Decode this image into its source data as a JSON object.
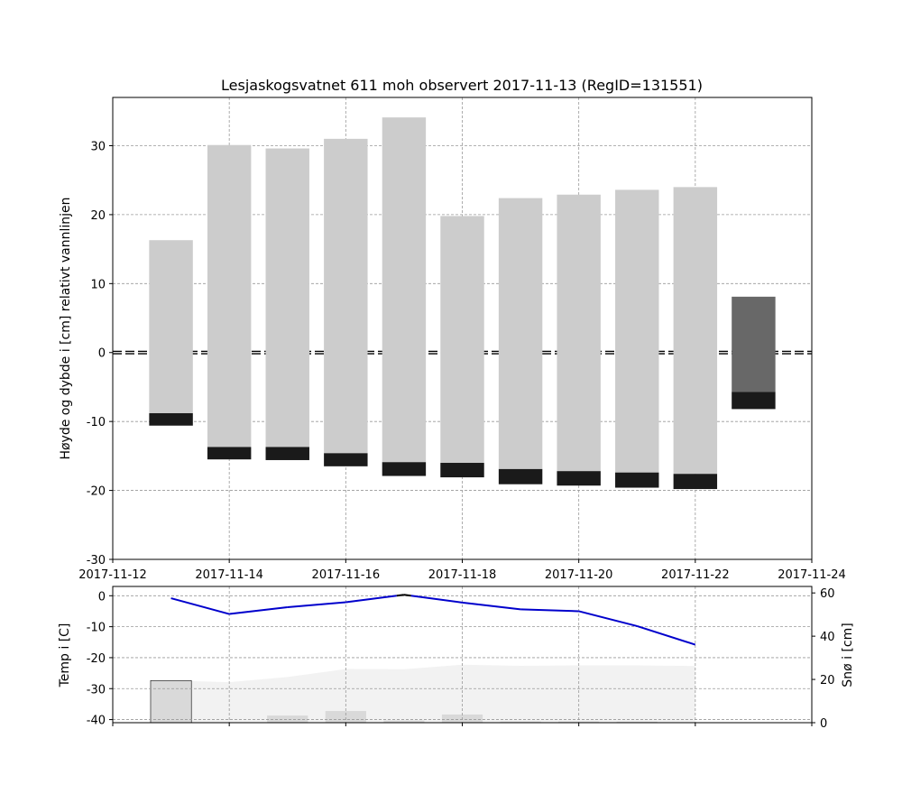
{
  "chart_data": [
    {
      "type": "bar",
      "title": "Lesjaskogsvatnet 611 moh observert 2017-11-13 (RegID=131551)",
      "ylabel": "Høyde og dybde i [cm] relativt vannlinjen",
      "xlabel": "",
      "xlim": [
        "2017-11-12",
        "2017-11-24"
      ],
      "ylim": [
        -30,
        37
      ],
      "grid": true,
      "xticks": [
        "2017-11-12",
        "2017-11-14",
        "2017-11-16",
        "2017-11-18",
        "2017-11-20",
        "2017-11-22",
        "2017-11-24"
      ],
      "yticks": [
        -30,
        -20,
        -10,
        0,
        10,
        20,
        30
      ],
      "water_line": 0,
      "colors": {
        "snow": "#cccccc",
        "slush": "#686868",
        "ice": "#1a1a1a"
      },
      "columns": [
        {
          "date": "2017-11-13",
          "snow_top": 16.3,
          "ice_top": -8.8,
          "ice_bottom": -10.6
        },
        {
          "date": "2017-11-14",
          "snow_top": 30.1,
          "ice_top": -13.7,
          "ice_bottom": -15.5
        },
        {
          "date": "2017-11-15",
          "snow_top": 29.6,
          "ice_top": -13.7,
          "ice_bottom": -15.6
        },
        {
          "date": "2017-11-16",
          "snow_top": 31.0,
          "ice_top": -14.6,
          "ice_bottom": -16.5
        },
        {
          "date": "2017-11-17",
          "snow_top": 34.1,
          "ice_top": -15.9,
          "ice_bottom": -17.9
        },
        {
          "date": "2017-11-18",
          "snow_top": 19.8,
          "ice_top": -16.0,
          "ice_bottom": -18.1
        },
        {
          "date": "2017-11-19",
          "snow_top": 22.4,
          "ice_top": -16.9,
          "ice_bottom": -19.1
        },
        {
          "date": "2017-11-20",
          "snow_top": 22.9,
          "ice_top": -17.2,
          "ice_bottom": -19.3
        },
        {
          "date": "2017-11-21",
          "snow_top": 23.6,
          "ice_top": -17.4,
          "ice_bottom": -19.6
        },
        {
          "date": "2017-11-22",
          "slush_top": null,
          "snow_top": 24.0,
          "ice_top": -17.6,
          "ice_bottom": -19.8
        },
        {
          "date": "2017-11-23",
          "slush_top": 8.1,
          "ice_top": -5.7,
          "ice_bottom": -8.2
        }
      ]
    },
    {
      "type": "line",
      "ylabel": "Temp i [C]",
      "y2label": "Snø i [cm]",
      "xlim": [
        "2017-11-12",
        "2017-11-24"
      ],
      "ylim": [
        -41,
        3
      ],
      "y2lim": [
        0,
        63
      ],
      "yticks": [
        0,
        -10,
        -20,
        -30,
        -40
      ],
      "y2ticks": [
        0,
        20,
        40,
        60
      ],
      "grid": true,
      "colors": {
        "temp_below": "#0000cc",
        "temp_above": "#000000",
        "snow_fill": "#f2f2f2",
        "snow_bar": "#d9d9d9"
      },
      "temperature": {
        "x": [
          "2017-11-13",
          "2017-11-14",
          "2017-11-15",
          "2017-11-16",
          "2017-11-17",
          "2017-11-18",
          "2017-11-19",
          "2017-11-20",
          "2017-11-21",
          "2017-11-22"
        ],
        "values": [
          -0.8,
          -5.9,
          -3.7,
          -2.1,
          0.3,
          -2.2,
          -4.4,
          -5.0,
          -9.8,
          -15.8
        ]
      },
      "snow_depth": {
        "x": [
          "2017-11-13",
          "2017-11-14",
          "2017-11-15",
          "2017-11-16",
          "2017-11-17",
          "2017-11-18",
          "2017-11-19",
          "2017-11-20",
          "2017-11-21",
          "2017-11-22"
        ],
        "values": [
          19.5,
          18.7,
          21.1,
          24.8,
          24.7,
          26.8,
          26.3,
          26.5,
          26.5,
          26.2
        ]
      },
      "new_snow": {
        "x": [
          "2017-11-13",
          "2017-11-14",
          "2017-11-15",
          "2017-11-16",
          "2017-11-17",
          "2017-11-18",
          "2017-11-19",
          "2017-11-20",
          "2017-11-21",
          "2017-11-22"
        ],
        "values": [
          19.5,
          0.2,
          3.3,
          5.4,
          1.0,
          3.8,
          0.6,
          0.6,
          0.5,
          0.0
        ]
      }
    }
  ]
}
